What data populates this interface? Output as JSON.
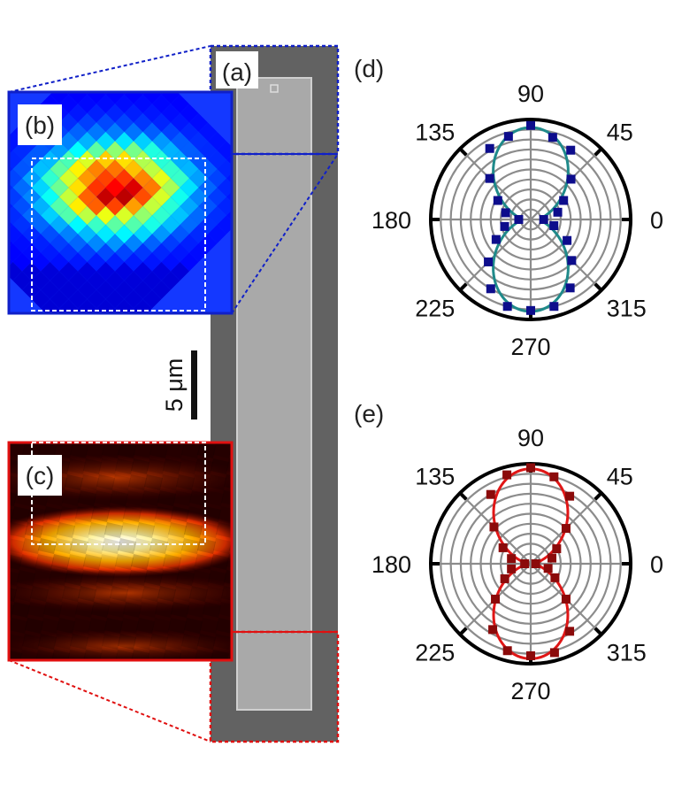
{
  "panels": {
    "a": {
      "label": "(a)"
    },
    "b": {
      "label": "(b)"
    },
    "c": {
      "label": "(c)"
    },
    "d": {
      "label": "(d)"
    },
    "e": {
      "label": "(e)"
    }
  },
  "scale_bar": {
    "label": "5 μm"
  },
  "colors": {
    "blue_frame": "#1020c8",
    "red_frame": "#e01010",
    "d_marker": "#0d0d8c",
    "d_fit": "#1f8a8a",
    "e_marker": "#8b0a0a",
    "e_fit": "#e01616",
    "grid": "#8c8c8c",
    "sem_bg": "#5e5e5e",
    "sem_wire": "#a9a9a9"
  },
  "chart_data": [
    {
      "panel": "d",
      "type": "scatter",
      "coordinate_system": "polar",
      "angle_labels": [
        "0",
        "45",
        "90",
        "135",
        "180",
        "225",
        "270",
        "315"
      ],
      "angle_unit": "degrees",
      "r_range": [
        0,
        1
      ],
      "grid": true,
      "series": [
        {
          "kind": "points",
          "theta": [
            0,
            15,
            30,
            45,
            60,
            75,
            90,
            105,
            120,
            135,
            150,
            165,
            180,
            195,
            210,
            225,
            240,
            255,
            270,
            285,
            300,
            315,
            330,
            345
          ],
          "r": [
            0.13,
            0.28,
            0.38,
            0.57,
            0.8,
            0.85,
            0.94,
            0.86,
            0.82,
            0.58,
            0.38,
            0.26,
            0.12,
            0.27,
            0.4,
            0.6,
            0.8,
            0.9,
            0.91,
            0.9,
            0.79,
            0.58,
            0.42,
            0.24
          ]
        },
        {
          "kind": "fit",
          "model": "a + b*sin^2(theta)",
          "a": 0.1,
          "b": 0.82
        }
      ]
    },
    {
      "panel": "e",
      "type": "scatter",
      "coordinate_system": "polar",
      "angle_labels": [
        "0",
        "45",
        "90",
        "135",
        "180",
        "225",
        "270",
        "315"
      ],
      "angle_unit": "degrees",
      "r_range": [
        0,
        1
      ],
      "grid": true,
      "series": [
        {
          "kind": "points",
          "theta": [
            0,
            15,
            30,
            45,
            60,
            75,
            90,
            105,
            120,
            135,
            150,
            165,
            180,
            195,
            210,
            225,
            240,
            255,
            270,
            285,
            300,
            315,
            330,
            345
          ],
          "r": [
            0.05,
            0.22,
            0.3,
            0.5,
            0.78,
            0.9,
            0.96,
            0.92,
            0.8,
            0.52,
            0.32,
            0.2,
            0.06,
            0.2,
            0.3,
            0.5,
            0.76,
            0.9,
            0.92,
            0.92,
            0.78,
            0.5,
            0.28,
            0.18
          ]
        },
        {
          "kind": "fit",
          "model": "a + b*sin^2(theta)",
          "a": 0.03,
          "b": 0.92
        }
      ]
    }
  ]
}
